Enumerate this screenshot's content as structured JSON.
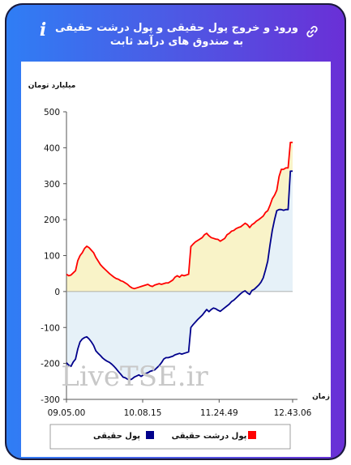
{
  "title": "ورود و خروج پول حقیقی و پول درشت حقیقی به صندوق های درآمد ثابت",
  "watermark": "LiveTSE.ir",
  "icons": {
    "info": "info-icon",
    "link": "link-icon"
  },
  "chart_data": {
    "type": "line",
    "ylabel": "میلیارد تومان",
    "xlabel": "زمان",
    "ylim": [
      -300,
      500
    ],
    "yticks": [
      -300,
      -200,
      -100,
      0,
      100,
      200,
      300,
      400,
      500
    ],
    "xtick_labels": [
      "09.05.00",
      "10.08.15",
      "11.24.49",
      "12.43.06"
    ],
    "xlim_index": [
      0,
      100
    ],
    "xtick_positions": [
      0,
      33.7,
      67.5,
      100
    ],
    "legend_position": "bottom",
    "series": [
      {
        "name": "پول حقیقی",
        "color": "#00008b",
        "fill": "#e6f1f8",
        "points": [
          [
            0,
            -198
          ],
          [
            1,
            -205
          ],
          [
            2,
            -208
          ],
          [
            3,
            -196
          ],
          [
            4,
            -188
          ],
          [
            5,
            -160
          ],
          [
            6,
            -140
          ],
          [
            7,
            -132
          ],
          [
            8,
            -128
          ],
          [
            9,
            -126
          ],
          [
            10,
            -132
          ],
          [
            11,
            -140
          ],
          [
            12,
            -150
          ],
          [
            13,
            -165
          ],
          [
            14,
            -172
          ],
          [
            15,
            -178
          ],
          [
            16,
            -185
          ],
          [
            17,
            -190
          ],
          [
            18,
            -194
          ],
          [
            19,
            -197
          ],
          [
            20,
            -202
          ],
          [
            21,
            -208
          ],
          [
            22,
            -215
          ],
          [
            23,
            -223
          ],
          [
            24,
            -230
          ],
          [
            25,
            -238
          ],
          [
            26,
            -240
          ],
          [
            27,
            -244
          ],
          [
            28,
            -246
          ],
          [
            29,
            -243
          ],
          [
            30,
            -238
          ],
          [
            31,
            -235
          ],
          [
            32,
            -232
          ],
          [
            33,
            -236
          ],
          [
            34,
            -232
          ],
          [
            35,
            -228
          ],
          [
            36,
            -226
          ],
          [
            37,
            -222
          ],
          [
            38,
            -220
          ],
          [
            39,
            -218
          ],
          [
            40,
            -212
          ],
          [
            41,
            -206
          ],
          [
            42,
            -198
          ],
          [
            43,
            -188
          ],
          [
            44,
            -184
          ],
          [
            45,
            -184
          ],
          [
            46,
            -182
          ],
          [
            47,
            -180
          ],
          [
            48,
            -176
          ],
          [
            49,
            -174
          ],
          [
            50,
            -172
          ],
          [
            51,
            -174
          ],
          [
            52,
            -172
          ],
          [
            53,
            -170
          ],
          [
            54,
            -168
          ],
          [
            55,
            -100
          ],
          [
            56,
            -92
          ],
          [
            57,
            -85
          ],
          [
            58,
            -78
          ],
          [
            59,
            -72
          ],
          [
            60,
            -66
          ],
          [
            61,
            -58
          ],
          [
            62,
            -50
          ],
          [
            63,
            -56
          ],
          [
            64,
            -50
          ],
          [
            65,
            -46
          ],
          [
            66,
            -48
          ],
          [
            67,
            -52
          ],
          [
            68,
            -55
          ],
          [
            69,
            -50
          ],
          [
            70,
            -45
          ],
          [
            71,
            -40
          ],
          [
            72,
            -35
          ],
          [
            73,
            -28
          ],
          [
            74,
            -24
          ],
          [
            75,
            -18
          ],
          [
            76,
            -12
          ],
          [
            77,
            -6
          ],
          [
            78,
            -1
          ],
          [
            79,
            2
          ],
          [
            80,
            -4
          ],
          [
            81,
            -8
          ],
          [
            82,
            3
          ],
          [
            83,
            6
          ],
          [
            84,
            12
          ],
          [
            85,
            18
          ],
          [
            86,
            26
          ],
          [
            87,
            38
          ],
          [
            88,
            60
          ],
          [
            89,
            85
          ],
          [
            90,
            130
          ],
          [
            91,
            170
          ],
          [
            92,
            200
          ],
          [
            93,
            225
          ],
          [
            94,
            228
          ],
          [
            95,
            228
          ],
          [
            96,
            226
          ],
          [
            97,
            228
          ],
          [
            98,
            228
          ],
          [
            99,
            335
          ],
          [
            100,
            335
          ]
        ]
      },
      {
        "name": "پول درشت حقیقی",
        "color": "#ff0000",
        "fill": "#f9f3c8",
        "points": [
          [
            0,
            48
          ],
          [
            1,
            44
          ],
          [
            2,
            46
          ],
          [
            3,
            52
          ],
          [
            4,
            58
          ],
          [
            5,
            86
          ],
          [
            6,
            100
          ],
          [
            7,
            108
          ],
          [
            8,
            120
          ],
          [
            9,
            126
          ],
          [
            10,
            122
          ],
          [
            11,
            115
          ],
          [
            12,
            108
          ],
          [
            13,
            95
          ],
          [
            14,
            85
          ],
          [
            15,
            75
          ],
          [
            16,
            68
          ],
          [
            17,
            62
          ],
          [
            18,
            56
          ],
          [
            19,
            50
          ],
          [
            20,
            45
          ],
          [
            21,
            40
          ],
          [
            22,
            36
          ],
          [
            23,
            34
          ],
          [
            24,
            30
          ],
          [
            25,
            28
          ],
          [
            26,
            24
          ],
          [
            27,
            20
          ],
          [
            28,
            14
          ],
          [
            29,
            10
          ],
          [
            30,
            8
          ],
          [
            31,
            10
          ],
          [
            32,
            12
          ],
          [
            33,
            14
          ],
          [
            34,
            16
          ],
          [
            35,
            18
          ],
          [
            36,
            20
          ],
          [
            37,
            16
          ],
          [
            38,
            14
          ],
          [
            39,
            18
          ],
          [
            40,
            20
          ],
          [
            41,
            22
          ],
          [
            42,
            20
          ],
          [
            43,
            22
          ],
          [
            44,
            24
          ],
          [
            45,
            24
          ],
          [
            46,
            28
          ],
          [
            47,
            32
          ],
          [
            48,
            40
          ],
          [
            49,
            44
          ],
          [
            50,
            40
          ],
          [
            51,
            46
          ],
          [
            52,
            44
          ],
          [
            53,
            46
          ],
          [
            54,
            48
          ],
          [
            55,
            125
          ],
          [
            56,
            132
          ],
          [
            57,
            138
          ],
          [
            58,
            142
          ],
          [
            59,
            146
          ],
          [
            60,
            150
          ],
          [
            61,
            158
          ],
          [
            62,
            162
          ],
          [
            63,
            155
          ],
          [
            64,
            150
          ],
          [
            65,
            148
          ],
          [
            66,
            146
          ],
          [
            67,
            145
          ],
          [
            68,
            140
          ],
          [
            69,
            144
          ],
          [
            70,
            148
          ],
          [
            71,
            158
          ],
          [
            72,
            162
          ],
          [
            73,
            168
          ],
          [
            74,
            170
          ],
          [
            75,
            175
          ],
          [
            76,
            178
          ],
          [
            77,
            180
          ],
          [
            78,
            185
          ],
          [
            79,
            190
          ],
          [
            80,
            186
          ],
          [
            81,
            178
          ],
          [
            82,
            186
          ],
          [
            83,
            190
          ],
          [
            84,
            196
          ],
          [
            85,
            200
          ],
          [
            86,
            205
          ],
          [
            87,
            210
          ],
          [
            88,
            220
          ],
          [
            89,
            225
          ],
          [
            90,
            240
          ],
          [
            91,
            258
          ],
          [
            92,
            268
          ],
          [
            93,
            282
          ],
          [
            94,
            320
          ],
          [
            95,
            340
          ],
          [
            96,
            340
          ],
          [
            97,
            344
          ],
          [
            98,
            344
          ],
          [
            99,
            415
          ],
          [
            100,
            415
          ]
        ]
      }
    ]
  }
}
